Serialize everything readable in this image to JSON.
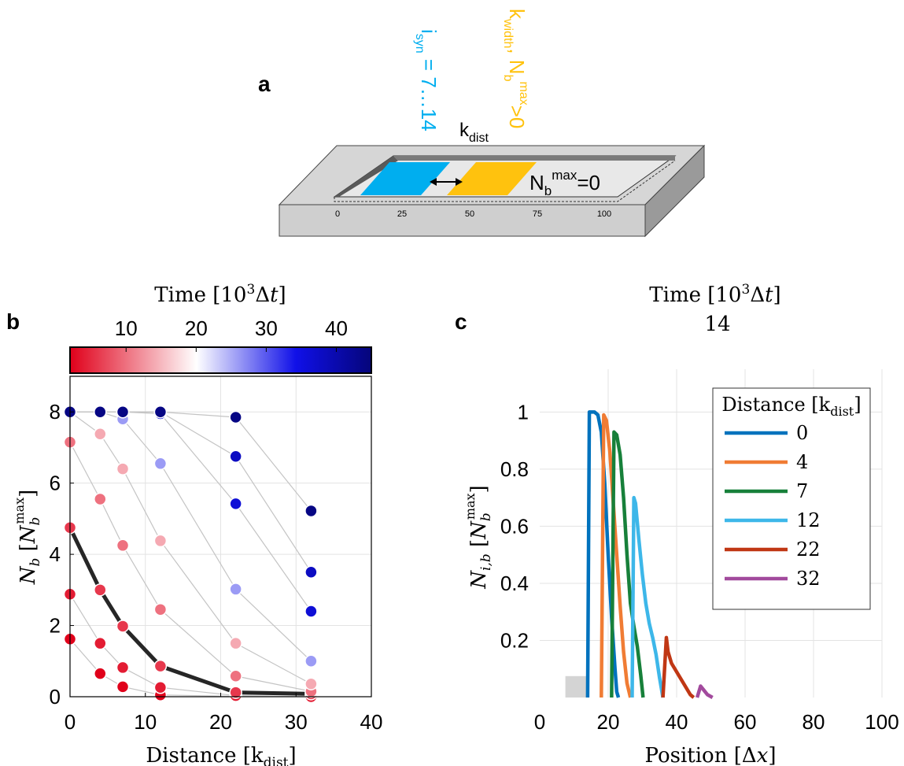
{
  "panel_a": {
    "letter": "a",
    "isyn_main": "i",
    "isyn_sub": "syn",
    "isyn_rest": " = 7…14",
    "kwidth_main": "k",
    "kwidth_sub": "width",
    "kwidth_mid": ", N",
    "kwidth_nsub": "b",
    "kwidth_sup": "max",
    "kwidth_rest": ">0",
    "kdist_main": "k",
    "kdist_sub": "dist",
    "nbmax_main": "N",
    "nbmax_sub": "b",
    "nbmax_sup": "max",
    "nbmax_rest": "=0",
    "scale_ticks": [
      "0",
      "25",
      "50",
      "75",
      "100"
    ],
    "colors": {
      "cyan": "#00aeef",
      "yellow": "#ffc20e"
    }
  },
  "chart_data": [
    {
      "type": "scatter",
      "panel": "b",
      "colorbar_title": "Time [10³Δt]",
      "colorbar_ticks": [
        "10",
        "20",
        "30",
        "40"
      ],
      "colorbar_range": [
        2,
        45
      ],
      "xlabel": "Distance [k_dist]",
      "ylabel": "N_b [N_b^max]",
      "xlim": [
        0,
        40
      ],
      "ylim": [
        0,
        9
      ],
      "xticks": [
        "0",
        "10",
        "20",
        "30",
        "40"
      ],
      "yticks": [
        "0",
        "2",
        "4",
        "6",
        "8"
      ],
      "grid": true,
      "x": [
        0,
        4,
        7,
        12,
        22,
        32
      ],
      "time_series": [
        {
          "time": 2,
          "values": [
            1.62,
            0.65,
            0.28,
            0.05,
            0.01,
            0.0
          ]
        },
        {
          "time": 4,
          "values": [
            2.88,
            1.5,
            0.82,
            0.26,
            0.03,
            0.0
          ]
        },
        {
          "time": 6,
          "values": [
            4.75,
            3.0,
            1.98,
            0.86,
            0.12,
            0.08
          ]
        },
        {
          "time": 10,
          "values": [
            7.15,
            5.55,
            4.25,
            2.45,
            0.58,
            0.15
          ]
        },
        {
          "time": 14,
          "values": [
            8.0,
            7.38,
            6.4,
            4.38,
            1.5,
            0.36
          ]
        },
        {
          "time": 26,
          "values": [
            8.0,
            8.0,
            7.8,
            6.55,
            3.02,
            1.0
          ]
        },
        {
          "time": 36,
          "values": [
            8.0,
            8.0,
            8.0,
            7.95,
            5.42,
            2.4
          ]
        },
        {
          "time": 38,
          "values": [
            8.0,
            8.0,
            8.0,
            8.0,
            6.75,
            3.5
          ]
        },
        {
          "time": 44,
          "values": [
            8.0,
            8.0,
            8.0,
            8.0,
            7.85,
            5.22
          ]
        }
      ],
      "highlight_time": 6,
      "colors": {
        "cmap_low": "#e0001a",
        "cmap_mid": "#ffffff",
        "cmap_high": "#05057a",
        "connector": "#c4c4c4",
        "highlight": "#262626"
      }
    },
    {
      "type": "line",
      "panel": "c",
      "title_line1": "Time [10³Δt]",
      "title_line2": "14",
      "xlabel": "Position [Δx]",
      "ylabel": "N_i,b [N_b^max]",
      "xlim": [
        0,
        100
      ],
      "ylim": [
        0,
        1.15
      ],
      "xticks": [
        "0",
        "20",
        "40",
        "60",
        "80",
        "100"
      ],
      "yticks": [
        "0.2",
        "0.4",
        "0.6",
        "0.8",
        "1"
      ],
      "grid": true,
      "legend_title": "Distance [k_dist]",
      "legend_position": "top-right",
      "shade": {
        "x": [
          7.5,
          14
        ],
        "y": [
          0,
          0.075
        ],
        "color": "#d4d4d4"
      },
      "series": [
        {
          "name": "0",
          "color": "#0072bd",
          "x": [
            14,
            14.5,
            16,
            17,
            18,
            19,
            20,
            21,
            22,
            22.5,
            23
          ],
          "y": [
            0,
            1.0,
            1.0,
            0.99,
            0.93,
            0.75,
            0.5,
            0.28,
            0.1,
            0.02,
            0
          ]
        },
        {
          "name": "4",
          "color": "#f07c34",
          "x": [
            18,
            18.7,
            19.5,
            20.5,
            21.5,
            22.5,
            23.5,
            24.5,
            25.5,
            26.5
          ],
          "y": [
            0,
            0.99,
            0.97,
            0.86,
            0.68,
            0.5,
            0.32,
            0.16,
            0.05,
            0
          ]
        },
        {
          "name": "7",
          "color": "#17803a",
          "x": [
            21,
            21.7,
            22.5,
            23.5,
            24.5,
            25.5,
            26.5,
            27.5,
            28.5,
            29.5,
            30.2
          ],
          "y": [
            0,
            0.93,
            0.92,
            0.85,
            0.7,
            0.5,
            0.33,
            0.25,
            0.18,
            0.08,
            0
          ]
        },
        {
          "name": "12",
          "color": "#3db7e9",
          "x": [
            27,
            27.5,
            28,
            29,
            30,
            31,
            32,
            33,
            34,
            35,
            36
          ],
          "y": [
            0,
            0.7,
            0.68,
            0.55,
            0.43,
            0.33,
            0.26,
            0.21,
            0.15,
            0.07,
            0
          ]
        },
        {
          "name": "22",
          "color": "#c03714",
          "x": [
            36,
            37,
            37.5,
            38.5,
            40,
            41.5,
            43,
            44,
            45
          ],
          "y": [
            0,
            0.21,
            0.16,
            0.12,
            0.09,
            0.06,
            0.03,
            0.01,
            0
          ]
        },
        {
          "name": "32",
          "color": "#a24a9d",
          "x": [
            46,
            47,
            48,
            49,
            50.5
          ],
          "y": [
            0,
            0.04,
            0.025,
            0.01,
            0
          ]
        }
      ]
    }
  ]
}
